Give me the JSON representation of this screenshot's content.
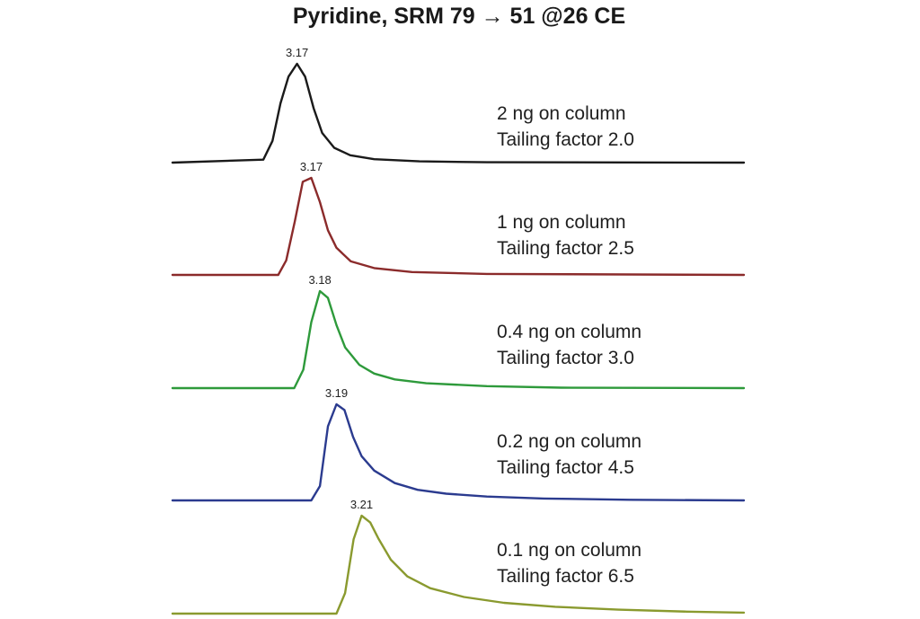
{
  "chart_data": {
    "type": "line",
    "title": "Pyridine, SRM 79 → 51 @26 CE",
    "xlabel": "",
    "ylabel": "",
    "grid": false,
    "layout": "stacked chromatograms",
    "series": [
      {
        "name": "2 ng on column",
        "amount": "2 ng on column",
        "tailing": "Tailing factor 2.0",
        "peak_label": "3.17",
        "color": "#1a1a1a",
        "x": [
          0.0,
          0.159,
          0.175,
          0.189,
          0.203,
          0.218,
          0.232,
          0.247,
          0.262,
          0.283,
          0.311,
          0.353,
          0.432,
          0.55,
          1.0
        ],
        "y": [
          0.0,
          0.03,
          0.22,
          0.6,
          0.87,
          1.0,
          0.87,
          0.55,
          0.3,
          0.15,
          0.075,
          0.035,
          0.013,
          0.004,
          0.0
        ]
      },
      {
        "name": "1 ng on column",
        "amount": "1 ng on column",
        "tailing": "Tailing factor 2.5",
        "peak_label": "3.17",
        "color": "#8b2b2b",
        "x": [
          0.0,
          0.185,
          0.199,
          0.214,
          0.228,
          0.243,
          0.258,
          0.272,
          0.287,
          0.312,
          0.353,
          0.419,
          0.55,
          1.0
        ],
        "y": [
          0.0,
          0.0,
          0.15,
          0.55,
          0.96,
          1.0,
          0.75,
          0.46,
          0.28,
          0.14,
          0.07,
          0.03,
          0.01,
          0.0
        ]
      },
      {
        "name": "0.4 ng on column",
        "amount": "0.4 ng on column",
        "tailing": "Tailing factor 3.0",
        "peak_label": "3.18",
        "color": "#2e9a3b",
        "x": [
          0.0,
          0.213,
          0.229,
          0.243,
          0.258,
          0.272,
          0.287,
          0.302,
          0.327,
          0.353,
          0.389,
          0.444,
          0.55,
          0.68,
          1.0
        ],
        "y": [
          0.0,
          0.0,
          0.19,
          0.68,
          1.0,
          0.93,
          0.65,
          0.42,
          0.24,
          0.15,
          0.09,
          0.05,
          0.02,
          0.005,
          0.0
        ]
      },
      {
        "name": "0.2 ng on column",
        "amount": "0.2 ng on column",
        "tailing": "Tailing factor 4.5",
        "peak_label": "3.19",
        "color": "#2b3b8f",
        "x": [
          0.0,
          0.243,
          0.258,
          0.272,
          0.287,
          0.301,
          0.316,
          0.331,
          0.353,
          0.389,
          0.429,
          0.479,
          0.55,
          0.65,
          0.8,
          1.0
        ],
        "y": [
          0.0,
          0.0,
          0.15,
          0.77,
          1.0,
          0.94,
          0.66,
          0.46,
          0.31,
          0.18,
          0.11,
          0.07,
          0.04,
          0.02,
          0.007,
          0.0
        ]
      },
      {
        "name": "0.1 ng on column",
        "amount": "0.1 ng on column",
        "tailing": "Tailing factor 6.5",
        "peak_label": "3.21",
        "color": "#8a9a2f",
        "x": [
          0.0,
          0.287,
          0.302,
          0.317,
          0.331,
          0.346,
          0.36,
          0.382,
          0.411,
          0.451,
          0.51,
          0.58,
          0.67,
          0.78,
          0.9,
          1.0
        ],
        "y": [
          0.0,
          0.0,
          0.21,
          0.76,
          1.0,
          0.93,
          0.77,
          0.55,
          0.38,
          0.26,
          0.17,
          0.11,
          0.07,
          0.04,
          0.02,
          0.01
        ]
      }
    ]
  }
}
